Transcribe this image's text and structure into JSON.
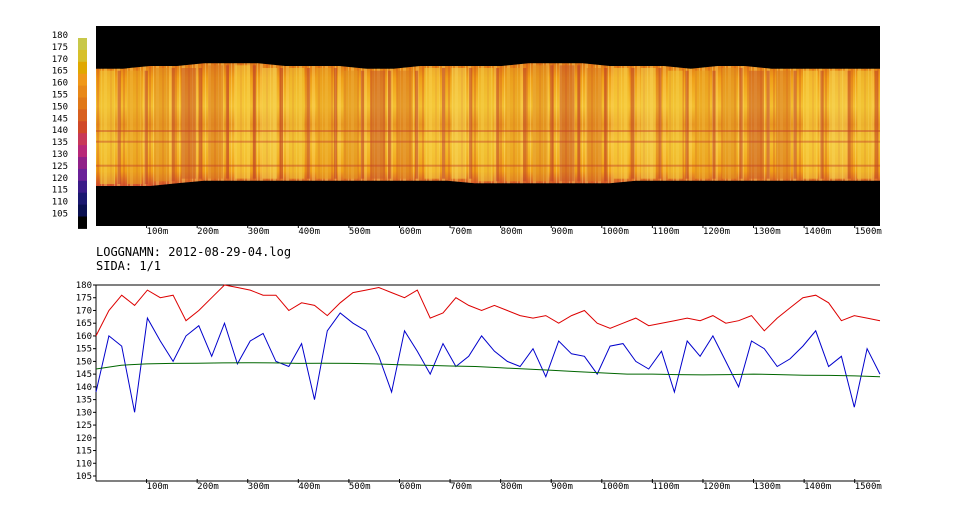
{
  "info": {
    "filename_line": "LOGGNAMN: 2012-08-29-04.log",
    "page_line": "SIDA: 1/1"
  },
  "chart_data": [
    {
      "type": "heatmap",
      "x_ticks": [
        "100m",
        "200m",
        "300m",
        "400m",
        "500m",
        "600m",
        "700m",
        "800m",
        "900m",
        "1000m",
        "1100m",
        "1200m",
        "1300m",
        "1400m",
        "1500m"
      ],
      "xlim": [
        0,
        1550
      ],
      "colorbar": {
        "ticks": [
          "180",
          "175",
          "170",
          "165",
          "160",
          "155",
          "150",
          "145",
          "140",
          "135",
          "130",
          "125",
          "120",
          "115",
          "110",
          "105"
        ],
        "range": [
          105,
          180
        ],
        "colors": [
          "#c8c84a",
          "#d7c02a",
          "#e0a800",
          "#f09818",
          "#e88818",
          "#e07818",
          "#d86020",
          "#d04828",
          "#c83858",
          "#b82878",
          "#902088",
          "#6a2098",
          "#3a1a88",
          "#1a1870",
          "#0a1050",
          "#000000"
        ]
      },
      "surface_upper": [
        164,
        164,
        165,
        165,
        166,
        166,
        166,
        165,
        165,
        165,
        164,
        164,
        165,
        165,
        165,
        165,
        166,
        166,
        166,
        165,
        165,
        165,
        164,
        165,
        165,
        164,
        164,
        164,
        164,
        164
      ],
      "surface_lower": [
        120,
        120,
        120,
        121,
        122,
        122,
        122,
        122,
        122,
        122,
        122,
        122,
        122,
        122,
        121,
        121,
        121,
        121,
        121,
        121,
        122,
        122,
        122,
        122,
        122,
        122,
        122,
        122,
        122,
        122
      ]
    },
    {
      "type": "line",
      "y_ticks": [
        "180",
        "175",
        "170",
        "165",
        "160",
        "155",
        "150",
        "145",
        "140",
        "135",
        "130",
        "125",
        "120",
        "115",
        "110",
        "105"
      ],
      "ylim": [
        105,
        180
      ],
      "xlim": [
        0,
        1550
      ],
      "x_ticks": [
        "100m",
        "200m",
        "300m",
        "400m",
        "500m",
        "600m",
        "700m",
        "800m",
        "900m",
        "1000m",
        "1100m",
        "1200m",
        "1300m",
        "1400m",
        "1500m"
      ],
      "series": [
        {
          "color": "#dd0000",
          "values": [
            160,
            170,
            176,
            172,
            178,
            175,
            176,
            166,
            170,
            175,
            180,
            179,
            178,
            176,
            176,
            170,
            173,
            172,
            168,
            173,
            177,
            178,
            179,
            177,
            175,
            178,
            167,
            169,
            175,
            172,
            170,
            172,
            170,
            168,
            167,
            168,
            165,
            168,
            170,
            165,
            163,
            165,
            167,
            164,
            165,
            166,
            167,
            166,
            168,
            165,
            166,
            168,
            162,
            167,
            171,
            175,
            176,
            173,
            166,
            168,
            167,
            166
          ]
        },
        {
          "color": "#0000cc",
          "values": [
            138,
            160,
            156,
            130,
            167,
            158,
            150,
            160,
            164,
            152,
            165,
            149,
            158,
            161,
            150,
            148,
            157,
            135,
            162,
            169,
            165,
            162,
            152,
            138,
            162,
            154,
            145,
            157,
            148,
            152,
            160,
            154,
            150,
            148,
            155,
            144,
            158,
            153,
            152,
            145,
            156,
            157,
            150,
            147,
            154,
            138,
            158,
            152,
            160,
            150,
            140,
            158,
            155,
            148,
            151,
            156,
            162,
            148,
            152,
            132,
            155,
            145
          ]
        },
        {
          "color": "#006600",
          "values": [
            147,
            148.5,
            149,
            149.2,
            149.3,
            149.4,
            149.5,
            149.4,
            149.2,
            149.3,
            149.2,
            149,
            148.7,
            148.5,
            148.2,
            148,
            147.5,
            147,
            146.5,
            146,
            145.5,
            145,
            145,
            144.8,
            144.7,
            144.8,
            145,
            144.8,
            144.6,
            144.5,
            144.3,
            144
          ]
        }
      ]
    }
  ]
}
